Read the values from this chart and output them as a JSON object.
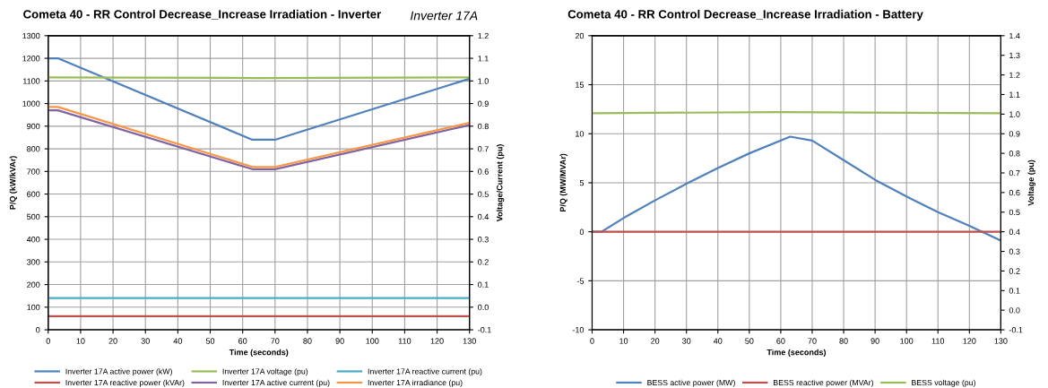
{
  "chart_data": [
    {
      "type": "line",
      "title": "Cometa 40 - RR Control Decrease_Increase Irradiation - Inverter",
      "annotations": [
        "Inverter 17A"
      ],
      "xlabel": "Time (seconds)",
      "ylabel": "P/Q (kW/kVAr)",
      "y2label": "Voltage/Current (pu)",
      "xlim": [
        0,
        130
      ],
      "xticks": [
        0,
        10,
        20,
        30,
        40,
        50,
        60,
        70,
        80,
        90,
        100,
        110,
        120,
        130
      ],
      "ylim": [
        0,
        1300
      ],
      "yticks": [
        0,
        100,
        200,
        300,
        400,
        500,
        600,
        700,
        800,
        900,
        1000,
        1100,
        1200,
        1300
      ],
      "y2lim": [
        -0.1,
        1.2
      ],
      "y2ticks": [
        {
          "value": -0.1,
          "label": "-0.1"
        },
        {
          "value": 0,
          "label": "0.0"
        },
        {
          "value": 0.1,
          "label": "0.1"
        },
        {
          "value": 0.2,
          "label": "0.2"
        },
        {
          "value": 0.3,
          "label": "0.3"
        },
        {
          "value": 0.4,
          "label": "0.4"
        },
        {
          "value": 0.5,
          "label": "0.5"
        },
        {
          "value": 0.6,
          "label": "0.6"
        },
        {
          "value": 0.7,
          "label": "0.7"
        },
        {
          "value": 0.8,
          "label": "0.8"
        },
        {
          "value": 0.9,
          "label": "0.9"
        },
        {
          "value": 1.0,
          "label": "1.0"
        },
        {
          "value": 1.1,
          "label": "1.1"
        },
        {
          "value": 1.2,
          "label": "1.2"
        }
      ],
      "grid": true,
      "legend": "bottom",
      "marker": "none",
      "line_style": "solid",
      "series": [
        {
          "name": "Inverter 17A active power (kW)",
          "color": "#4f81bd",
          "x": [
            0,
            3,
            63,
            70,
            130
          ],
          "values": [
            1200,
            1200,
            840,
            840,
            1110
          ]
        },
        {
          "name": "Inverter 17A reactive power (kVAr)",
          "color": "#c0504d",
          "x": [
            0,
            130
          ],
          "values": [
            60,
            60
          ]
        },
        {
          "name": "Inverter 17A voltage (pu)",
          "color": "#9bbb59",
          "axis": "y2",
          "x": [
            0,
            65,
            130
          ],
          "values": [
            1.016,
            1.013,
            1.016
          ]
        },
        {
          "name": "Inverter 17A active current (pu)",
          "color": "#8064a2",
          "axis": "y2",
          "x": [
            0,
            3,
            63,
            70,
            130
          ],
          "values": [
            0.87,
            0.87,
            0.61,
            0.61,
            0.805
          ]
        },
        {
          "name": "Inverter 17A reactive current (pu)",
          "color": "#4bacc6",
          "axis": "y2",
          "x": [
            0,
            130
          ],
          "values": [
            0.04,
            0.04
          ]
        },
        {
          "name": "Inverter 17A irradiance (pu)",
          "color": "#f79646",
          "axis": "y2",
          "x": [
            0,
            3,
            63,
            70,
            130
          ],
          "values": [
            0.885,
            0.885,
            0.62,
            0.62,
            0.815
          ]
        }
      ]
    },
    {
      "type": "line",
      "title": "Cometa 40 - RR Control Decrease_Increase Irradiation - Battery",
      "xlabel": "Time (seconds)",
      "ylabel": "P/Q (MW/MVAr)",
      "y2label": "Voltage (pu)",
      "xlim": [
        0,
        130
      ],
      "xticks": [
        0,
        10,
        20,
        30,
        40,
        50,
        60,
        70,
        80,
        90,
        100,
        110,
        120,
        130
      ],
      "ylim": [
        -10,
        20
      ],
      "yticks": [
        -10,
        -5,
        0,
        5,
        10,
        15,
        20
      ],
      "y2lim": [
        -0.1,
        1.4
      ],
      "y2ticks": [
        {
          "value": -0.1,
          "label": "-0.1"
        },
        {
          "value": 0,
          "label": "0.0"
        },
        {
          "value": 0.1,
          "label": "0.1"
        },
        {
          "value": 0.2,
          "label": "0.2"
        },
        {
          "value": 0.3,
          "label": "0.3"
        },
        {
          "value": 0.4,
          "label": "0.4"
        },
        {
          "value": 0.5,
          "label": "0.5"
        },
        {
          "value": 0.6,
          "label": "0.6"
        },
        {
          "value": 0.7,
          "label": "0.7"
        },
        {
          "value": 0.8,
          "label": "0.8"
        },
        {
          "value": 0.9,
          "label": "0.9"
        },
        {
          "value": 1.0,
          "label": "1.0"
        },
        {
          "value": 1.1,
          "label": "1.1"
        },
        {
          "value": 1.2,
          "label": "1.2"
        },
        {
          "value": 1.3,
          "label": "1.3"
        },
        {
          "value": 1.4,
          "label": "1.4"
        }
      ],
      "grid": true,
      "legend": "bottom",
      "marker": "none",
      "line_style": "solid",
      "series": [
        {
          "name": "BESS active power (MW)",
          "color": "#4f81bd",
          "x": [
            0,
            3,
            10,
            20,
            30,
            40,
            50,
            63,
            70,
            80,
            90,
            100,
            110,
            120,
            130
          ],
          "values": [
            0,
            0,
            1.4,
            3.2,
            4.9,
            6.5,
            8.0,
            9.7,
            9.3,
            7.3,
            5.3,
            3.6,
            2.0,
            0.6,
            -0.9
          ]
        },
        {
          "name": "BESS reactive power (MVAr)",
          "color": "#c0504d",
          "x": [
            0,
            130
          ],
          "values": [
            0,
            0
          ]
        },
        {
          "name": "BESS voltage (pu)",
          "color": "#9bbb59",
          "axis": "y2",
          "x": [
            0,
            60,
            130
          ],
          "values": [
            1.005,
            1.01,
            1.005
          ]
        }
      ]
    }
  ]
}
